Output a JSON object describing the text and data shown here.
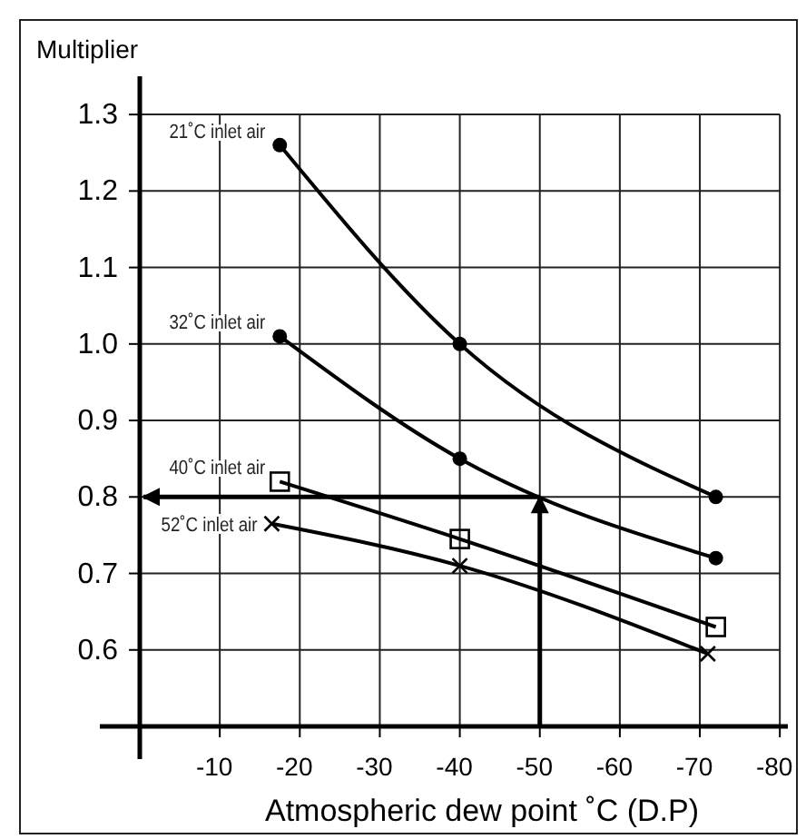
{
  "chart_data": {
    "type": "line",
    "xlabel": "Atmospheric dew point ˚C (D.P)",
    "ylabel": "Multiplier",
    "xlim": [
      0,
      -81
    ],
    "ylim": [
      0.5,
      1.35
    ],
    "xticks": [
      -10,
      -20,
      -30,
      -40,
      -50,
      -60,
      -70,
      -80
    ],
    "yticks": [
      0.6,
      0.7,
      0.8,
      0.9,
      {
        "value": 1.0,
        "label": "1.0"
      },
      1.1,
      1.2,
      1.3
    ],
    "grid": true,
    "line_style": "solid",
    "series": [
      {
        "name": "21˚C inlet air",
        "color": "#000000",
        "marker": "circle",
        "x": [
          -17.5,
          -40,
          -72
        ],
        "values": [
          1.26,
          1.0,
          0.8
        ]
      },
      {
        "name": "32˚C inlet air",
        "color": "#000000",
        "marker": "circle",
        "x": [
          -17.5,
          -40,
          -72
        ],
        "values": [
          1.01,
          0.85,
          0.72
        ]
      },
      {
        "name": "40˚C inlet air",
        "color": "#000000",
        "marker": "square",
        "x": [
          -17.5,
          -40,
          -72
        ],
        "values": [
          0.82,
          0.745,
          0.63
        ]
      },
      {
        "name": "52˚C inlet air",
        "color": "#000000",
        "marker": "cross",
        "x": [
          -16.5,
          -40,
          -71
        ],
        "values": [
          0.765,
          0.71,
          0.595
        ]
      }
    ],
    "ref_lines": [
      {
        "axis": "x",
        "value": -50
      },
      {
        "axis": "y",
        "value": 0.8
      }
    ]
  }
}
